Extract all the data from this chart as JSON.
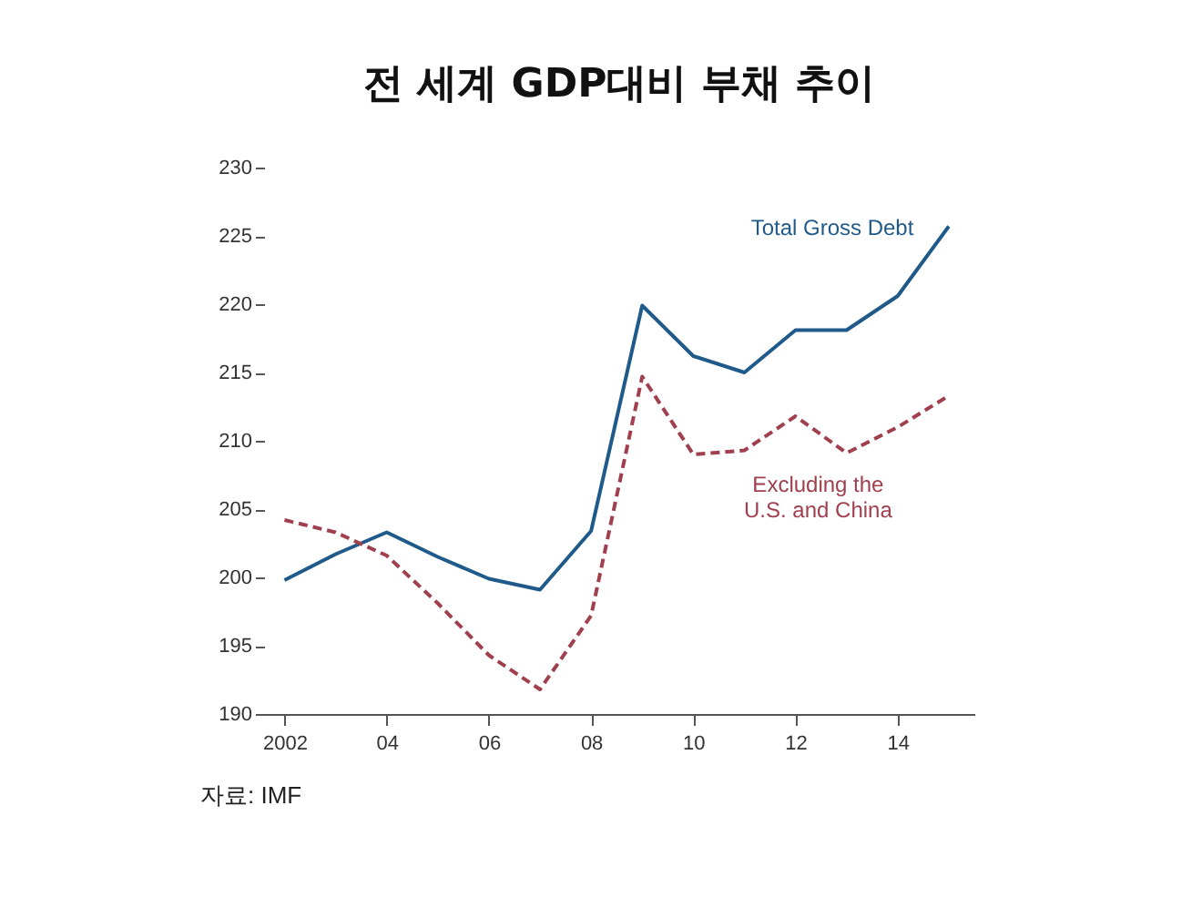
{
  "chart_data": {
    "type": "line",
    "title": "전 세계 GDP대비 부채 추이",
    "x": [
      2002,
      2003,
      2004,
      2005,
      2006,
      2007,
      2008,
      2009,
      2010,
      2011,
      2012,
      2013,
      2014,
      2015
    ],
    "series": [
      {
        "color": "#1f5a8a",
        "line_style": "solid",
        "values": [
          199.8,
          201.7,
          203.3,
          201.5,
          199.9,
          199.1,
          203.4,
          219.9,
          216.2,
          215.0,
          218.1,
          218.1,
          220.6,
          225.7
        ]
      },
      {
        "color": "#a0404f",
        "line_style": "dashed",
        "values": [
          204.2,
          203.3,
          201.6,
          198.1,
          194.3,
          191.8,
          197.2,
          214.7,
          209.0,
          209.3,
          211.8,
          209.1,
          211.0,
          213.3
        ]
      }
    ],
    "xlim": [
      2001.6,
      2015.5
    ],
    "xticks": [
      {
        "value": 2002,
        "label": "2002"
      },
      {
        "value": 2004,
        "label": "04"
      },
      {
        "value": 2006,
        "label": "06"
      },
      {
        "value": 2008,
        "label": "08"
      },
      {
        "value": 2010,
        "label": "10"
      },
      {
        "value": 2012,
        "label": "12"
      },
      {
        "value": 2014,
        "label": "14"
      }
    ],
    "ylim": [
      190,
      230
    ],
    "yticks": [
      190,
      195,
      200,
      205,
      210,
      215,
      220,
      225,
      230
    ],
    "annotations": [
      "Total Gross Debt",
      "Excluding the\nU.S. and China",
      "자료: IMF"
    ],
    "grid": false,
    "marker": "none"
  }
}
